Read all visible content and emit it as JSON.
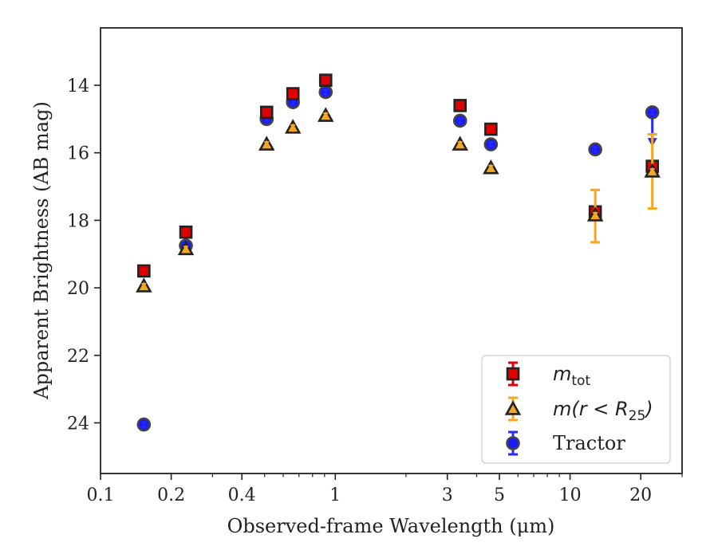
{
  "chart_data": {
    "type": "scatter",
    "title": "",
    "xlabel": "Observed-frame Wavelength (μm)",
    "ylabel": "Apparent Brightness (AB mag)",
    "x_scale": "log",
    "xlim": [
      0.1,
      30
    ],
    "ylim": [
      25.5,
      12.3
    ],
    "y_inverted": true,
    "grid": false,
    "legend_position": "lower-right",
    "x_ticks": [
      {
        "value": 0.1,
        "label": "0.1"
      },
      {
        "value": 0.2,
        "label": "0.2"
      },
      {
        "value": 0.4,
        "label": "0.4"
      },
      {
        "value": 1,
        "label": "1"
      },
      {
        "value": 3,
        "label": "3"
      },
      {
        "value": 5,
        "label": "5"
      },
      {
        "value": 10,
        "label": "10"
      },
      {
        "value": 20,
        "label": "20"
      }
    ],
    "x_minor_ticks": [
      0.3,
      0.5,
      0.6,
      0.7,
      0.8,
      0.9,
      2,
      4,
      6,
      7,
      8,
      9,
      30
    ],
    "y_ticks": [
      {
        "value": 14,
        "label": "14"
      },
      {
        "value": 16,
        "label": "16"
      },
      {
        "value": 18,
        "label": "18"
      },
      {
        "value": 20,
        "label": "20"
      },
      {
        "value": 22,
        "label": "22"
      },
      {
        "value": 24,
        "label": "24"
      }
    ],
    "series": [
      {
        "key": "mtot",
        "legend_main": "m",
        "legend_sub": "tot",
        "marker": "square",
        "color": "#e00000",
        "edge": "#222222",
        "err_color": "#e00000",
        "points": [
          {
            "x": 0.153,
            "y": 19.5
          },
          {
            "x": 0.231,
            "y": 18.35
          },
          {
            "x": 0.51,
            "y": 14.8
          },
          {
            "x": 0.66,
            "y": 14.25
          },
          {
            "x": 0.91,
            "y": 13.85
          },
          {
            "x": 3.4,
            "y": 14.6
          },
          {
            "x": 4.6,
            "y": 15.3
          },
          {
            "x": 12.8,
            "y": 17.75
          },
          {
            "x": 22.4,
            "y": 16.4
          }
        ]
      },
      {
        "key": "mr25",
        "legend_main": "m(r < R",
        "legend_sub": "25",
        "legend_tail": ")",
        "marker": "triangle",
        "color": "#f5a623",
        "edge": "#222222",
        "err_color": "#f5a623",
        "points": [
          {
            "x": 0.153,
            "y": 19.95
          },
          {
            "x": 0.231,
            "y": 18.85
          },
          {
            "x": 0.51,
            "y": 15.75
          },
          {
            "x": 0.66,
            "y": 15.25
          },
          {
            "x": 0.91,
            "y": 14.9
          },
          {
            "x": 3.4,
            "y": 15.75
          },
          {
            "x": 4.6,
            "y": 16.45
          },
          {
            "x": 12.8,
            "y": 17.85,
            "err_lo": 17.1,
            "err_hi": 18.65
          },
          {
            "x": 22.4,
            "y": 16.55,
            "err_lo": 15.45,
            "err_hi": 17.65
          }
        ]
      },
      {
        "key": "tractor",
        "legend_main": "Tractor",
        "marker": "circle",
        "color": "#1a1aff",
        "edge": "#444444",
        "err_color": "#2a2aff",
        "points": [
          {
            "x": 0.153,
            "y": 24.05
          },
          {
            "x": 0.231,
            "y": 18.75
          },
          {
            "x": 0.51,
            "y": 15.0
          },
          {
            "x": 0.66,
            "y": 14.5
          },
          {
            "x": 0.91,
            "y": 14.2
          },
          {
            "x": 3.4,
            "y": 15.05
          },
          {
            "x": 4.6,
            "y": 15.75
          },
          {
            "x": 12.8,
            "y": 15.9
          },
          {
            "x": 22.4,
            "y": 14.8,
            "upper_limit_to": 15.75
          }
        ]
      }
    ]
  }
}
